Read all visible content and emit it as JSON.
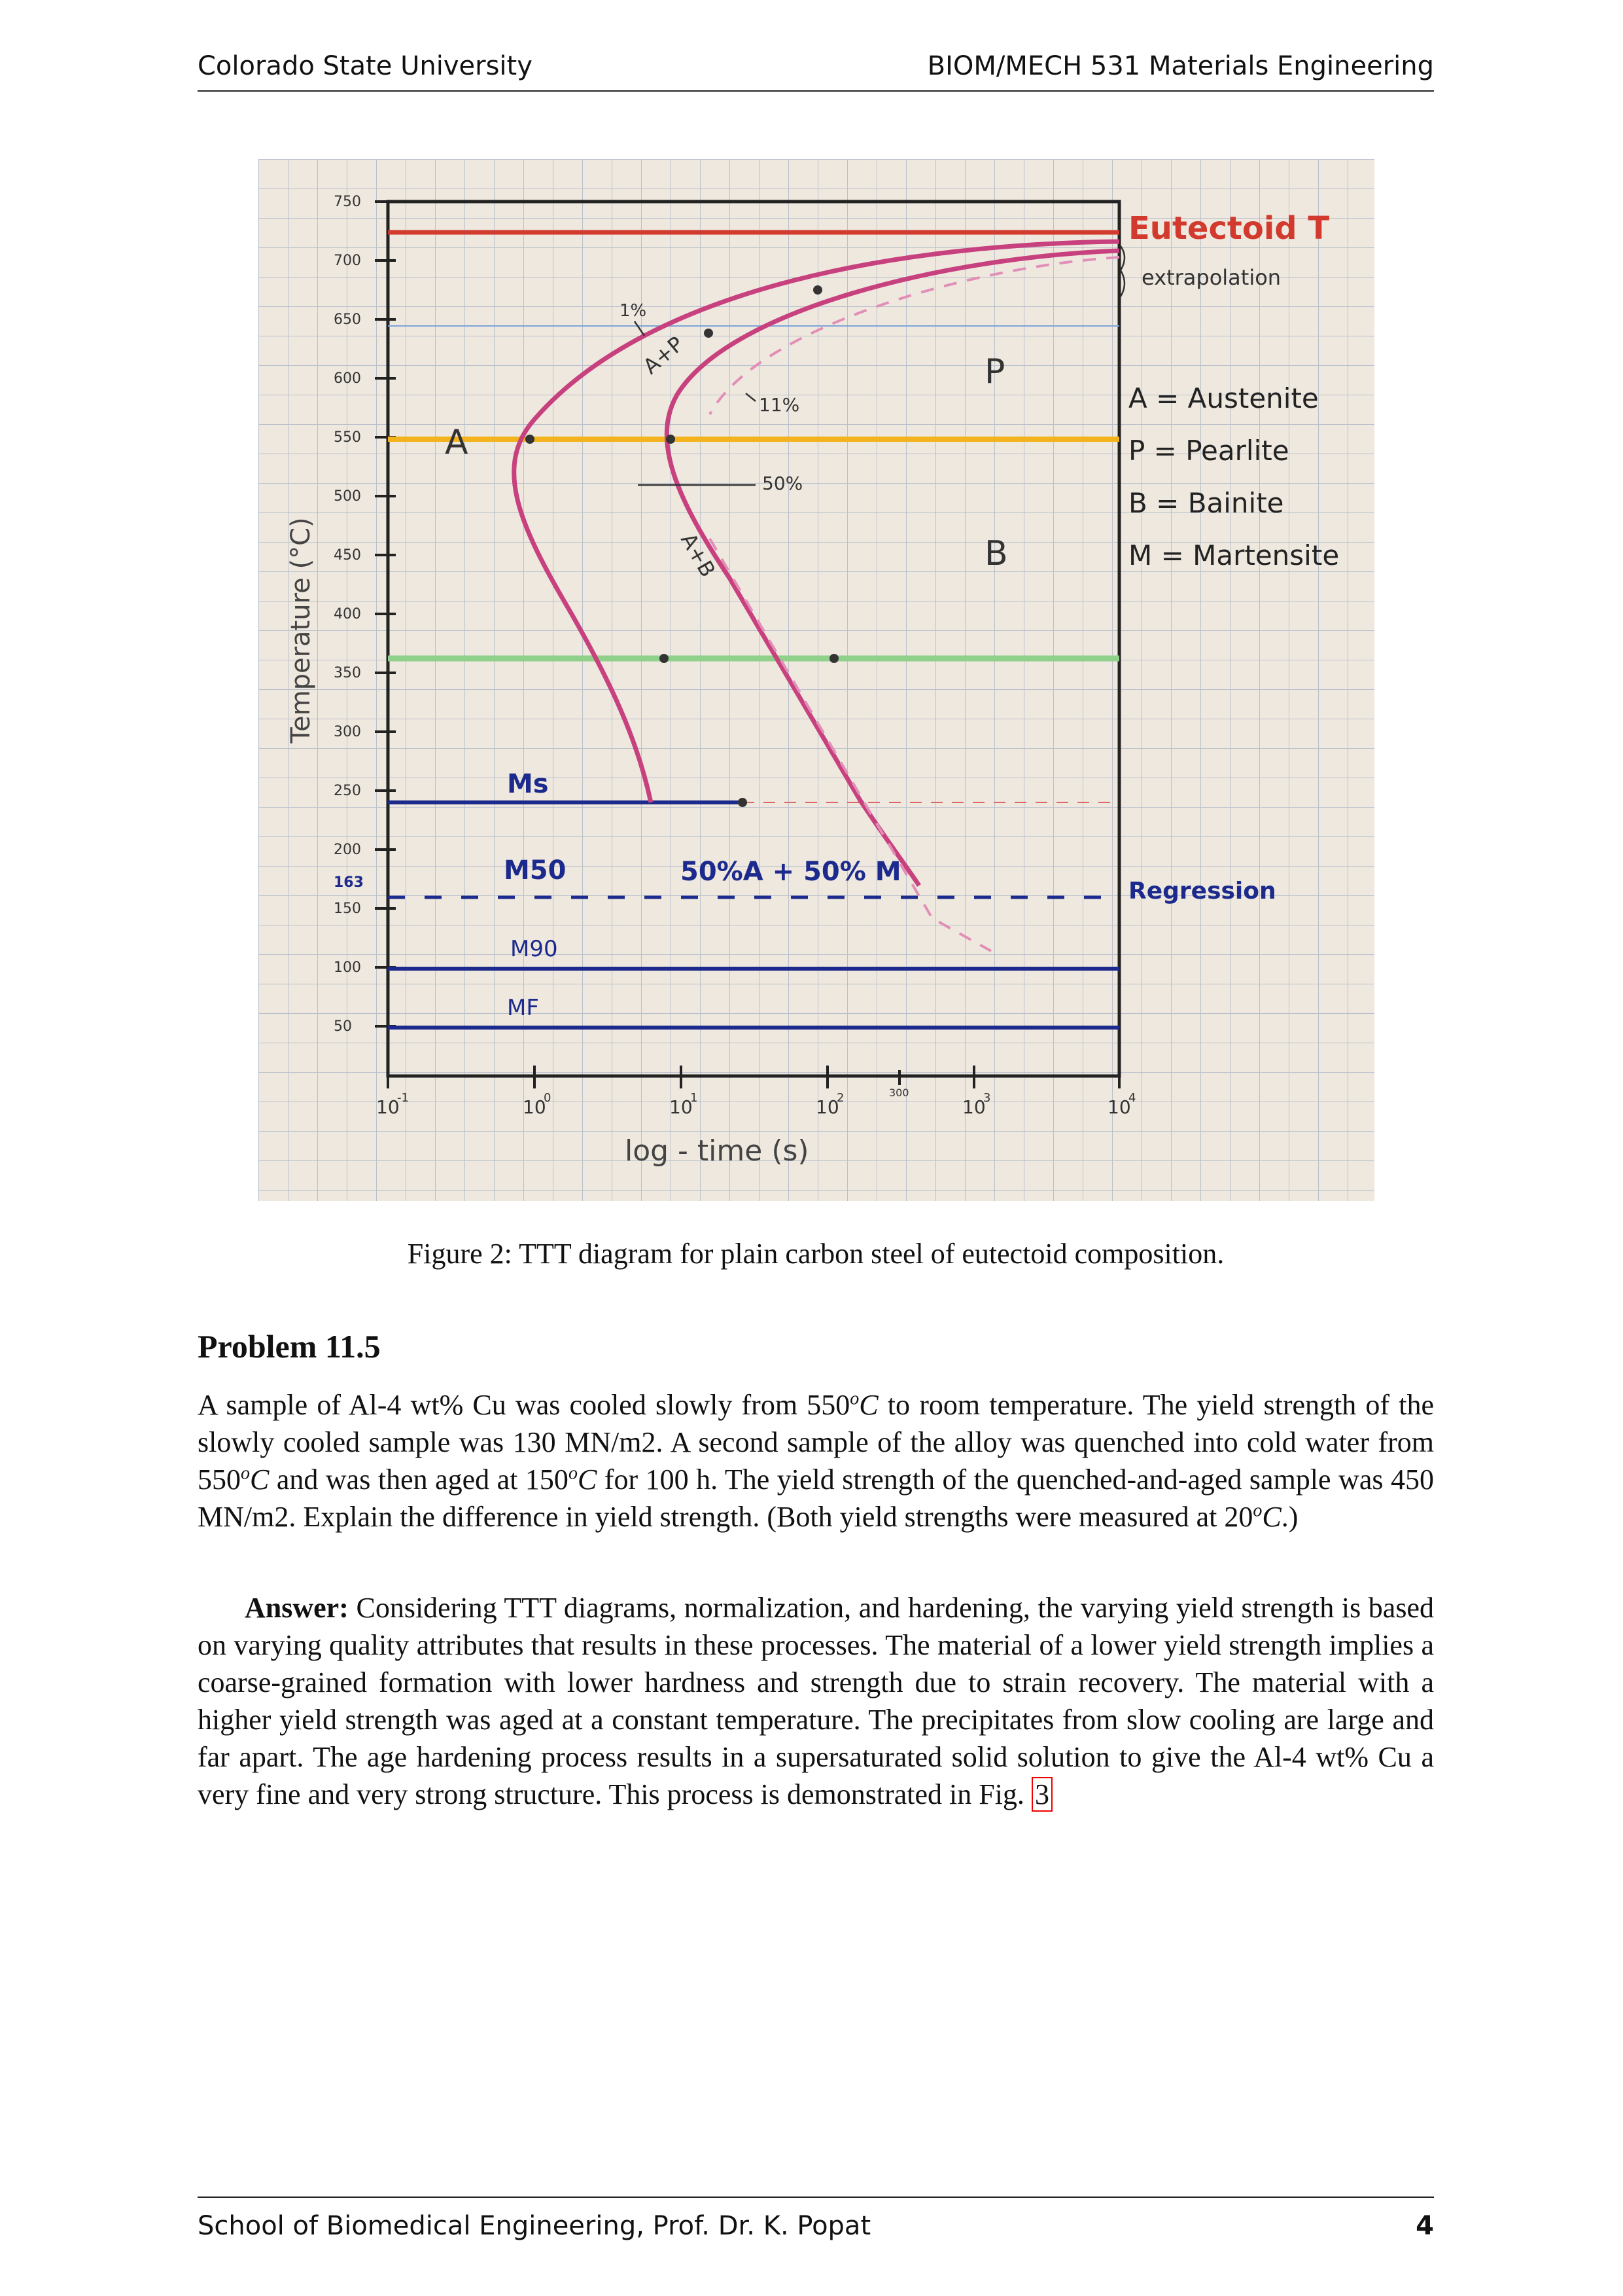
{
  "header": {
    "left": "Colorado State University",
    "right": "BIOM/MECH 531 Materials Engineering"
  },
  "figure": {
    "caption": "Figure 2: TTT diagram for plain carbon steel of eutectoid composition.",
    "labels": {
      "y_axis": "Temperature (°C)",
      "x_axis": "log - time (s)",
      "eutectoid": "Eutectoid T",
      "extrapolation": "extrapolation",
      "legend_a": "A = Austenite",
      "legend_p": "P = Pearlite",
      "legend_b": "B = Bainite",
      "legend_m": "M = Martensite",
      "region_a": "A",
      "region_p": "P",
      "region_b": "B",
      "ap": "A+P",
      "ab": "A+B",
      "one_pct": "1%",
      "eleven_pct": "11%",
      "fifty_pct": "50%",
      "ms": "Ms",
      "m50": "M50",
      "m90": "M90",
      "mf": "MF",
      "mix": "50%A + 50% M",
      "regression": "Regression",
      "tick_163": "163",
      "tick_300": "300"
    },
    "y_ticks": [
      "750",
      "700",
      "650",
      "600",
      "550",
      "500",
      "450",
      "400",
      "350",
      "300",
      "250",
      "200",
      "150",
      "100",
      "50"
    ],
    "x_ticks": [
      {
        "base": "10",
        "exp": "-1"
      },
      {
        "base": "10",
        "exp": "0"
      },
      {
        "base": "10",
        "exp": "1"
      },
      {
        "base": "10",
        "exp": "2"
      },
      {
        "base": "10",
        "exp": "3"
      },
      {
        "base": "10",
        "exp": "4"
      }
    ]
  },
  "problem": {
    "title": "Problem 11.5",
    "q1": "A sample of Al-4 wt% Cu was cooled slowly from 550",
    "q1_sup": "o",
    "q1_unit": "C",
    "q2": " to room temperature. The yield strength of the slowly cooled sample was 130 MN/m2. A second sample of the alloy was quenched into cold water from 550",
    "q2_sup": "o",
    "q2_unit": "C",
    "q3": " and was then aged at 150",
    "q3_sup": "o",
    "q3_unit": "C",
    "q4": " for 100 h. The yield strength of the quenched-and-aged sample was 450 MN/m2. Explain the difference in yield strength. (Both yield strengths were measured at 20",
    "q4_sup": "o",
    "q4_unit": "C",
    "q5": ".)",
    "answer_label": "Answer:",
    "answer": " Considering TTT diagrams, normalization, and hardening, the varying yield strength is based on varying quality attributes that results in these processes. The material of a lower yield strength implies a coarse-grained formation with lower hardness and strength due to strain recovery. The material with a higher yield strength was aged at a constant temperature. The precipitates from slow cooling are large and far apart. The age hardening process results in a supersaturated solid solution to give the Al-4 wt% Cu a very fine and very strong structure. This process is demonstrated in Fig. ",
    "fig_ref": "3"
  },
  "footer": {
    "left": "School of Biomedical Engineering, Prof. Dr. K. Popat",
    "page": "4"
  },
  "colors": {
    "eutectoid_line": "#d23a2e",
    "yellow_line": "#f2b31c",
    "green_line": "#8fd08a",
    "blue_line": "#1b2a8c",
    "pink_curve": "#c8417f",
    "grid": "#b9c0cc",
    "paper": "#efe8de"
  }
}
